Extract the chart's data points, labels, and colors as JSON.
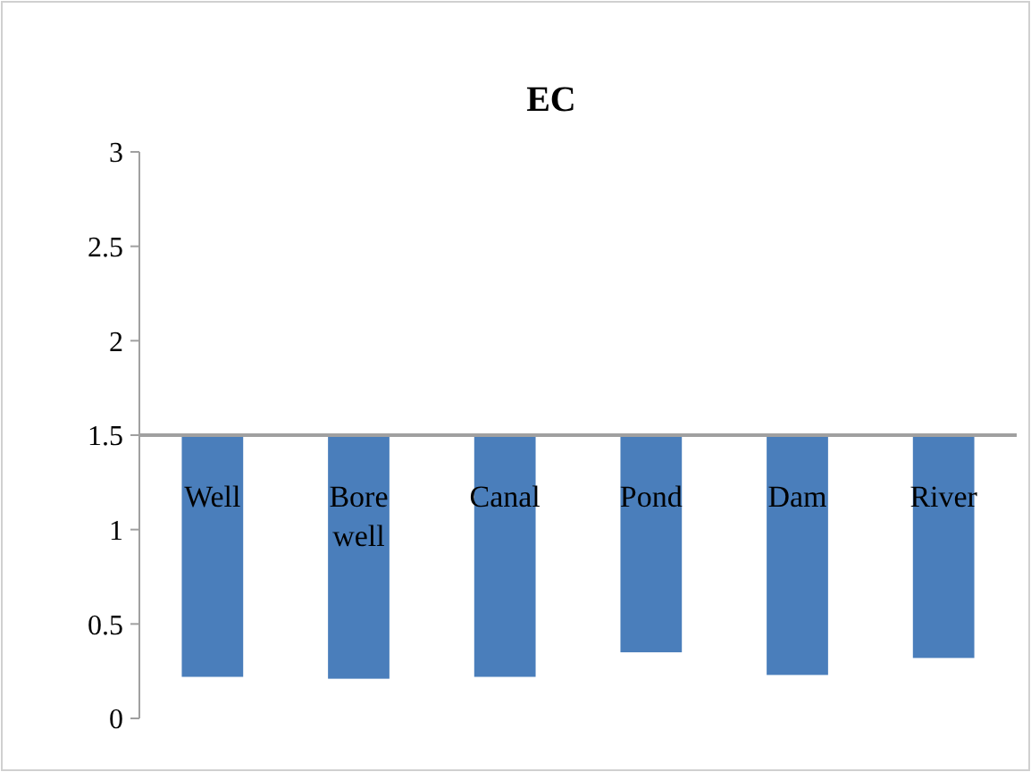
{
  "chart_data": {
    "type": "bar",
    "title": "EC",
    "categories": [
      "Well",
      "Bore well",
      "Canal",
      "Pond",
      "Dam",
      "River"
    ],
    "base": [
      1.5,
      1.5,
      1.5,
      1.5,
      1.5,
      1.5
    ],
    "values": [
      -1.28,
      -1.29,
      -1.28,
      -1.15,
      -1.27,
      -1.18
    ],
    "color": "#4a7ebb",
    "ylim": [
      0,
      3
    ],
    "yticks": [
      0,
      0.5,
      1,
      1.5,
      2,
      2.5,
      3
    ],
    "grid": false
  }
}
